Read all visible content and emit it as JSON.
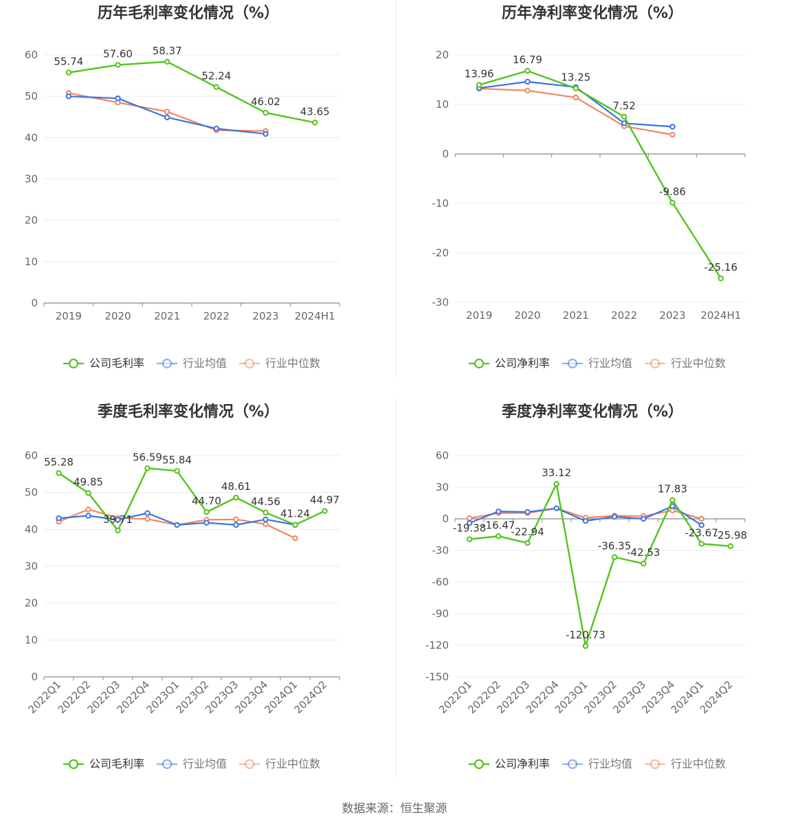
{
  "colors": {
    "company": "#52c41a",
    "industry_avg": "#3b73e0",
    "industry_median": "#f4845f",
    "grid": "#e5e9f2",
    "axis": "#888888",
    "title": "#333333"
  },
  "footer": {
    "source": "数据来源：恒生聚源"
  },
  "charts": [
    {
      "id": "annual-gross",
      "chart_data": {
        "type": "line",
        "title": "历年毛利率变化情况（%）",
        "categories": [
          "2019",
          "2020",
          "2021",
          "2022",
          "2023",
          "2024H1"
        ],
        "ylim": [
          0,
          60
        ],
        "yticks": [
          0,
          10,
          20,
          30,
          40,
          50,
          60
        ],
        "series": [
          {
            "name": "公司毛利率",
            "values": [
              55.74,
              57.6,
              58.37,
              52.24,
              46.02,
              43.65
            ],
            "labels": [
              "55.74",
              "57.60",
              "58.37",
              "52.24",
              "46.02",
              "43.65"
            ]
          },
          {
            "name": "行业均值",
            "values": [
              50.0,
              49.5,
              44.9,
              42.2,
              40.9,
              null
            ]
          },
          {
            "name": "行业中位数",
            "values": [
              50.8,
              48.5,
              46.3,
              41.8,
              41.6,
              null
            ]
          }
        ],
        "legend": "bottom-center"
      }
    },
    {
      "id": "annual-net",
      "chart_data": {
        "type": "line",
        "title": "历年净利率变化情况（%）",
        "categories": [
          "2019",
          "2020",
          "2021",
          "2022",
          "2023",
          "2024H1"
        ],
        "ylim": [
          -30,
          20
        ],
        "yticks": [
          -30,
          -20,
          -10,
          0,
          10,
          20
        ],
        "series": [
          {
            "name": "公司净利率",
            "values": [
              13.96,
              16.79,
              13.25,
              7.52,
              -9.86,
              -25.16
            ],
            "labels": [
              "13.96",
              "16.79",
              "13.25",
              "7.52",
              "-9.86",
              "-25.16"
            ]
          },
          {
            "name": "行业均值",
            "values": [
              13.3,
              14.6,
              13.5,
              6.2,
              5.5,
              null
            ]
          },
          {
            "name": "行业中位数",
            "values": [
              13.2,
              12.8,
              11.4,
              5.6,
              3.9,
              null
            ]
          }
        ],
        "legend": "bottom-center"
      }
    },
    {
      "id": "quarter-gross",
      "chart_data": {
        "type": "line",
        "title": "季度毛利率变化情况（%）",
        "categories": [
          "2022Q1",
          "2022Q2",
          "2022Q3",
          "2022Q4",
          "2023Q1",
          "2023Q2",
          "2023Q3",
          "2023Q4",
          "2024Q1",
          "2024Q2"
        ],
        "ylim": [
          0,
          60
        ],
        "yticks": [
          0,
          10,
          20,
          30,
          40,
          50,
          60
        ],
        "series": [
          {
            "name": "公司毛利率",
            "values": [
              55.28,
              49.85,
              39.71,
              56.59,
              55.84,
              44.7,
              48.61,
              44.56,
              41.24,
              44.97
            ],
            "labels": [
              "55.28",
              "49.85",
              "39.71",
              "56.59",
              "55.84",
              "44.70",
              "48.61",
              "44.56",
              "41.24",
              "44.97"
            ]
          },
          {
            "name": "行业均值",
            "values": [
              43.0,
              43.7,
              42.6,
              44.4,
              41.2,
              41.8,
              41.2,
              42.7,
              41.2,
              null
            ]
          },
          {
            "name": "行业中位数",
            "values": [
              42.1,
              45.4,
              43.1,
              42.8,
              41.2,
              42.6,
              42.7,
              41.4,
              37.6,
              null
            ]
          }
        ],
        "legend": "bottom-center"
      }
    },
    {
      "id": "quarter-net",
      "chart_data": {
        "type": "line",
        "title": "季度净利率变化情况（%）",
        "categories": [
          "2022Q1",
          "2022Q2",
          "2022Q3",
          "2022Q4",
          "2023Q1",
          "2023Q2",
          "2023Q3",
          "2023Q4",
          "2024Q1",
          "2024Q2"
        ],
        "ylim": [
          -150,
          60
        ],
        "yticks": [
          -150,
          -120,
          -90,
          -60,
          -30,
          0,
          30,
          60
        ],
        "series": [
          {
            "name": "公司净利率",
            "values": [
              -19.38,
              -16.47,
              -22.94,
              33.12,
              -120.73,
              -36.35,
              -42.53,
              17.83,
              -23.67,
              -25.98
            ],
            "labels": [
              "-19.38",
              "-16.47",
              "-22.94",
              "33.12",
              "-120.73",
              "-36.35",
              "-42.53",
              "17.83",
              "-23.67",
              "-25.98"
            ]
          },
          {
            "name": "行业均值",
            "values": [
              -4.0,
              7.0,
              6.5,
              10.0,
              -2.0,
              2.0,
              0.0,
              12.0,
              -6.0,
              null
            ]
          },
          {
            "name": "行业中位数",
            "values": [
              0.5,
              5.5,
              5.5,
              10.0,
              1.0,
              3.0,
              2.5,
              8.0,
              0.0,
              null
            ]
          }
        ],
        "legend": "bottom-center"
      }
    }
  ]
}
